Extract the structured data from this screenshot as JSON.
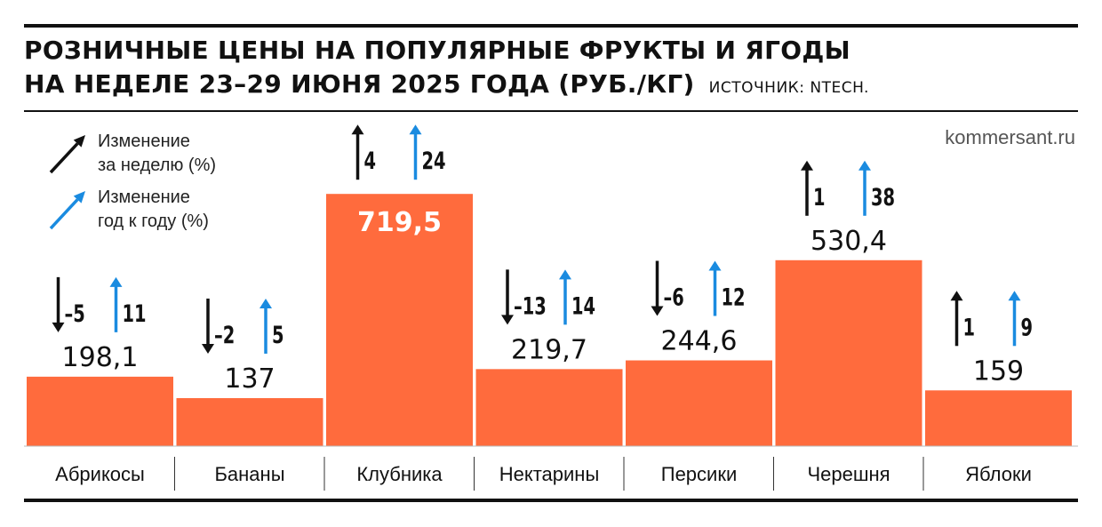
{
  "header": {
    "title_line1": "РОЗНИЧНЫЕ ЦЕНЫ НА ПОПУЛЯРНЫЕ ФРУКТЫ И ЯГОДЫ",
    "title_line2": "НА НЕДЕЛЕ 23–29 ИЮНЯ 2025 ГОДА (РУБ./КГ)",
    "source": "ИСТОЧНИК: NTECH.",
    "site": "kommersant.ru"
  },
  "legend": {
    "weekly": [
      "Изменение",
      "за неделю (%)"
    ],
    "yearly": [
      "Изменение",
      "год к году (%)"
    ]
  },
  "colors": {
    "bar": "#ff6b3d",
    "weekly_arrow": "#111111",
    "yearly_arrow": "#1a8be0",
    "value_on_bar": "#ffffff"
  },
  "chart_data": {
    "type": "bar",
    "categories": [
      "Абрикосы",
      "Бананы",
      "Клубника",
      "Нектарины",
      "Персики",
      "Черешня",
      "Яблоки"
    ],
    "series": [
      {
        "values": [
          198.1,
          137,
          719.5,
          219.7,
          244.6,
          530.4,
          159
        ]
      },
      {
        "name": "Изменение за неделю (%)",
        "values": [
          -5,
          -2,
          4,
          -13,
          -6,
          1,
          1
        ]
      },
      {
        "name": "Изменение год к году (%)",
        "values": [
          11,
          5,
          24,
          14,
          12,
          38,
          9
        ]
      }
    ],
    "value_labels": [
      "198,1",
      "137",
      "719,5",
      "219,7",
      "244,6",
      "530,4",
      "159"
    ],
    "weekly_labels": [
      "–5",
      "–2",
      "4",
      "–13",
      "–6",
      "1",
      "1"
    ],
    "yearly_labels": [
      "11",
      "5",
      "24",
      "14",
      "12",
      "38",
      "9"
    ],
    "value_label_inside": [
      false,
      false,
      true,
      false,
      false,
      false,
      false
    ],
    "ylim": [
      0,
      720
    ],
    "grid": false
  }
}
